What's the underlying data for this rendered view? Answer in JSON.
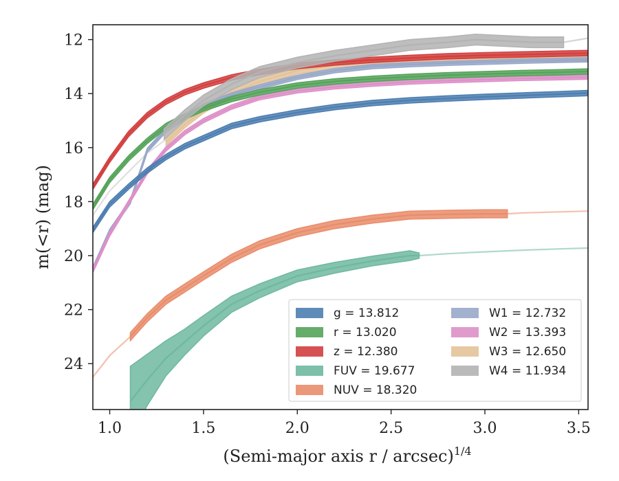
{
  "chart_data": {
    "type": "line",
    "xlabel": "(Semi-major axis r / arcsec)",
    "xlabel_sup": "1/4",
    "ylabel": "m(<r) (mag)",
    "xlim": [
      0.91,
      3.55
    ],
    "ylim": [
      25.7,
      11.45
    ],
    "y_inverted": true,
    "xticks": [
      1.0,
      1.5,
      2.0,
      2.5,
      3.0,
      3.5
    ],
    "xtick_labels": [
      "1.0",
      "1.5",
      "2.0",
      "2.5",
      "3.0",
      "3.5"
    ],
    "yticks": [
      12,
      14,
      16,
      18,
      20,
      22,
      24
    ],
    "ytick_labels": [
      "12",
      "14",
      "16",
      "18",
      "20",
      "22",
      "24"
    ],
    "grid": false,
    "legend_position": "lower-right",
    "legend_columns": 2,
    "series": [
      {
        "name": "g",
        "legend": "g = 13.812",
        "color": "#4c7eb0",
        "x": [
          0.91,
          1.0,
          1.1,
          1.2,
          1.3,
          1.4,
          1.5,
          1.65,
          1.8,
          2.0,
          2.2,
          2.4,
          2.6,
          2.8,
          3.0,
          3.2,
          3.4,
          3.55
        ],
        "y": [
          19.05,
          18.1,
          17.45,
          16.85,
          16.35,
          15.95,
          15.65,
          15.2,
          14.95,
          14.7,
          14.5,
          14.35,
          14.25,
          14.18,
          14.12,
          14.07,
          14.02,
          13.98
        ],
        "band": 0.1,
        "faded_from": 3.35
      },
      {
        "name": "r",
        "legend": "r = 13.020",
        "color": "#55a35a",
        "x": [
          0.91,
          1.0,
          1.1,
          1.2,
          1.3,
          1.4,
          1.5,
          1.65,
          1.8,
          2.0,
          2.2,
          2.4,
          2.6,
          2.8,
          3.0,
          3.2,
          3.4,
          3.55
        ],
        "y": [
          18.2,
          17.2,
          16.4,
          15.75,
          15.2,
          14.85,
          14.55,
          14.2,
          13.95,
          13.7,
          13.55,
          13.45,
          13.38,
          13.32,
          13.28,
          13.24,
          13.21,
          13.18
        ],
        "band": 0.1,
        "faded_from": null
      },
      {
        "name": "z",
        "legend": "z = 12.380",
        "color": "#d23f3f",
        "x": [
          0.91,
          1.0,
          1.1,
          1.2,
          1.3,
          1.4,
          1.5,
          1.65,
          1.8,
          2.0,
          2.2,
          2.4,
          2.6,
          2.8,
          3.0,
          3.2,
          3.4,
          3.55
        ],
        "y": [
          17.45,
          16.45,
          15.5,
          14.8,
          14.3,
          13.95,
          13.7,
          13.4,
          13.2,
          12.98,
          12.85,
          12.75,
          12.68,
          12.62,
          12.58,
          12.55,
          12.52,
          12.5
        ],
        "band": 0.1,
        "faded_from": null
      },
      {
        "name": "FUV",
        "legend": "FUV = 19.677",
        "color": "#6fb8a0",
        "x": [
          1.11,
          1.2,
          1.3,
          1.4,
          1.5,
          1.65,
          1.8,
          2.0,
          2.2,
          2.4,
          2.5,
          2.6,
          2.65,
          2.8,
          3.0,
          3.2,
          3.4,
          3.55
        ],
        "y": [
          25.4,
          24.6,
          23.8,
          23.2,
          22.6,
          21.8,
          21.3,
          20.75,
          20.45,
          20.2,
          20.1,
          20.0,
          20.0,
          19.93,
          19.86,
          19.8,
          19.75,
          19.72
        ],
        "band_list": [
          1.3,
          0.95,
          0.65,
          0.48,
          0.38,
          0.3,
          0.26,
          0.22,
          0.2,
          0.18,
          0.18,
          0.18,
          0.1,
          0.05,
          0.05,
          0.05,
          0.05,
          0.05
        ],
        "faded_from": 2.65
      },
      {
        "name": "NUV",
        "legend": "NUV = 18.320",
        "color": "#e98c6a",
        "x": [
          0.91,
          1.0,
          1.11,
          1.2,
          1.3,
          1.4,
          1.5,
          1.65,
          1.8,
          2.0,
          2.2,
          2.4,
          2.6,
          2.8,
          3.0,
          3.12,
          3.2,
          3.4,
          3.55
        ],
        "y": [
          24.5,
          23.7,
          23.0,
          22.3,
          21.65,
          21.2,
          20.75,
          20.1,
          19.6,
          19.15,
          18.85,
          18.65,
          18.5,
          18.47,
          18.45,
          18.45,
          18.42,
          18.38,
          18.35
        ],
        "band": 0.15,
        "faded_before": 1.11,
        "faded_from": 3.12
      },
      {
        "name": "W1",
        "legend": "W1 = 12.732",
        "color": "#98a8c9",
        "x": [
          0.91,
          1.0,
          1.11,
          1.2,
          1.3,
          1.4,
          1.5,
          1.65,
          1.8,
          2.0,
          2.2,
          2.4,
          2.6,
          2.8,
          3.0,
          3.2,
          3.4,
          3.55
        ],
        "y": [
          20.5,
          19.1,
          18.0,
          16.1,
          15.35,
          14.9,
          14.45,
          14.05,
          13.75,
          13.4,
          13.15,
          13.0,
          12.93,
          12.88,
          12.84,
          12.8,
          12.77,
          12.75
        ],
        "band": 0.08,
        "faded_from": null
      },
      {
        "name": "W2",
        "legend": "W2 = 13.393",
        "color": "#dd90c8",
        "x": [
          0.91,
          1.0,
          1.1,
          1.2,
          1.3,
          1.4,
          1.5,
          1.65,
          1.8,
          2.0,
          2.2,
          2.4,
          2.6,
          2.8,
          3.0,
          3.2,
          3.4,
          3.55
        ],
        "y": [
          20.55,
          19.2,
          18.05,
          16.9,
          16.05,
          15.45,
          15.0,
          14.5,
          14.15,
          13.9,
          13.75,
          13.65,
          13.57,
          13.52,
          13.48,
          13.44,
          13.41,
          13.39
        ],
        "band": 0.08,
        "faded_from": null
      },
      {
        "name": "W3",
        "legend": "W3 = 12.650",
        "color": "#e3c399",
        "x": [
          1.3,
          1.4,
          1.5,
          1.65,
          1.8,
          2.0,
          2.2,
          2.4,
          2.6,
          2.8,
          3.0,
          3.2,
          3.4,
          3.55
        ],
        "y": [
          15.8,
          15.15,
          14.6,
          14.0,
          13.55,
          13.15,
          12.95,
          12.85,
          12.78,
          12.72,
          12.69,
          12.68,
          12.7,
          12.68
        ],
        "band": 0.12,
        "faded_from": null
      },
      {
        "name": "W4",
        "legend": "W4 = 11.934",
        "color": "#b3b3b3",
        "x": [
          1.29,
          1.4,
          1.5,
          1.65,
          1.8,
          2.0,
          2.2,
          2.4,
          2.6,
          2.8,
          2.95,
          3.1,
          3.25,
          3.42,
          3.55
        ],
        "y": [
          15.5,
          14.8,
          14.25,
          13.65,
          13.2,
          12.85,
          12.6,
          12.4,
          12.2,
          12.1,
          12.0,
          12.05,
          12.1,
          12.1,
          11.95
        ],
        "band": 0.2,
        "faded_from": 3.42
      },
      {
        "name": "faint-gray-trace",
        "legend": null,
        "color": "#c4c4c4",
        "x": [
          0.91,
          1.0,
          1.1,
          1.2,
          1.3
        ],
        "y": [
          18.5,
          17.6,
          16.9,
          16.2,
          15.7
        ],
        "band": 0.05,
        "faded_from": 0.91
      }
    ]
  }
}
